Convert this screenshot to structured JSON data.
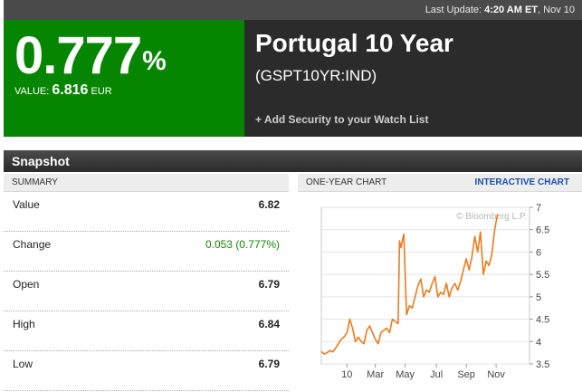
{
  "topbar": {
    "label": "Last Update:",
    "time": "4:20 AM ET",
    "date": "Nov 10"
  },
  "quote": {
    "pct": "0.777",
    "pct_sign": "%",
    "value_label": "VALUE:",
    "value": "6.816",
    "currency": "EUR",
    "name": "Portugal 10 Year",
    "ticker": "(GSPT10YR:IND)",
    "watch_link": "+ Add Security to your Watch List",
    "hero_color": "#068600"
  },
  "snapshot": {
    "title": "Snapshot"
  },
  "summary": {
    "header": "SUMMARY",
    "rows": [
      {
        "label": "Value",
        "value": "6.82"
      },
      {
        "label": "Change",
        "value": "0.053 (0.777%)"
      },
      {
        "label": "Open",
        "value": "6.79"
      },
      {
        "label": "High",
        "value": "6.84"
      },
      {
        "label": "Low",
        "value": "6.79"
      }
    ]
  },
  "chart": {
    "header": "ONE-YEAR CHART",
    "link": "INTERACTIVE CHART",
    "watermark": "© Bloomberg L.P."
  },
  "chart_data": {
    "type": "line",
    "series_color": "#f07a1a",
    "ylim": [
      3.5,
      7
    ],
    "yticks": [
      "7",
      "6.5",
      "6",
      "5.5",
      "5",
      "4.5",
      "4",
      "3.5"
    ],
    "ytick_values": [
      7,
      6.5,
      6,
      5.5,
      5,
      4.5,
      4,
      3.5
    ],
    "xticks": [
      "10",
      "Mar",
      "May",
      "Jul",
      "Sep",
      "Nov"
    ],
    "xtick_positions": [
      0.09,
      0.19,
      0.295,
      0.405,
      0.51,
      0.615
    ],
    "x": [
      0,
      0.01,
      0.02,
      0.03,
      0.04,
      0.05,
      0.06,
      0.07,
      0.08,
      0.09,
      0.1,
      0.11,
      0.12,
      0.13,
      0.14,
      0.15,
      0.16,
      0.17,
      0.18,
      0.19,
      0.2,
      0.21,
      0.22,
      0.23,
      0.24,
      0.25,
      0.26,
      0.27,
      0.275,
      0.28,
      0.29,
      0.3,
      0.31,
      0.32,
      0.33,
      0.34,
      0.35,
      0.36,
      0.37,
      0.38,
      0.39,
      0.4,
      0.41,
      0.42,
      0.43,
      0.44,
      0.45,
      0.46,
      0.47,
      0.48,
      0.49,
      0.5,
      0.51,
      0.52,
      0.53,
      0.54,
      0.55,
      0.56,
      0.57,
      0.58,
      0.59,
      0.6,
      0.61,
      0.62
    ],
    "values": [
      3.78,
      3.72,
      3.75,
      3.8,
      3.77,
      3.85,
      3.95,
      4.05,
      4.1,
      4.2,
      4.5,
      4.3,
      4.0,
      4.1,
      4.0,
      3.95,
      4.25,
      4.35,
      4.2,
      4.05,
      3.95,
      4.2,
      4.25,
      4.3,
      4.2,
      4.5,
      4.45,
      4.4,
      6.25,
      6.1,
      6.4,
      4.6,
      4.8,
      4.75,
      5.0,
      5.25,
      5.4,
      5.0,
      5.15,
      5.1,
      5.3,
      5.45,
      5.0,
      5.1,
      5.05,
      5.3,
      5.0,
      5.2,
      5.3,
      5.15,
      5.35,
      5.6,
      5.85,
      5.6,
      5.9,
      6.35,
      6.0,
      6.45,
      5.5,
      5.8,
      5.7,
      5.95,
      6.5,
      6.85
    ]
  }
}
